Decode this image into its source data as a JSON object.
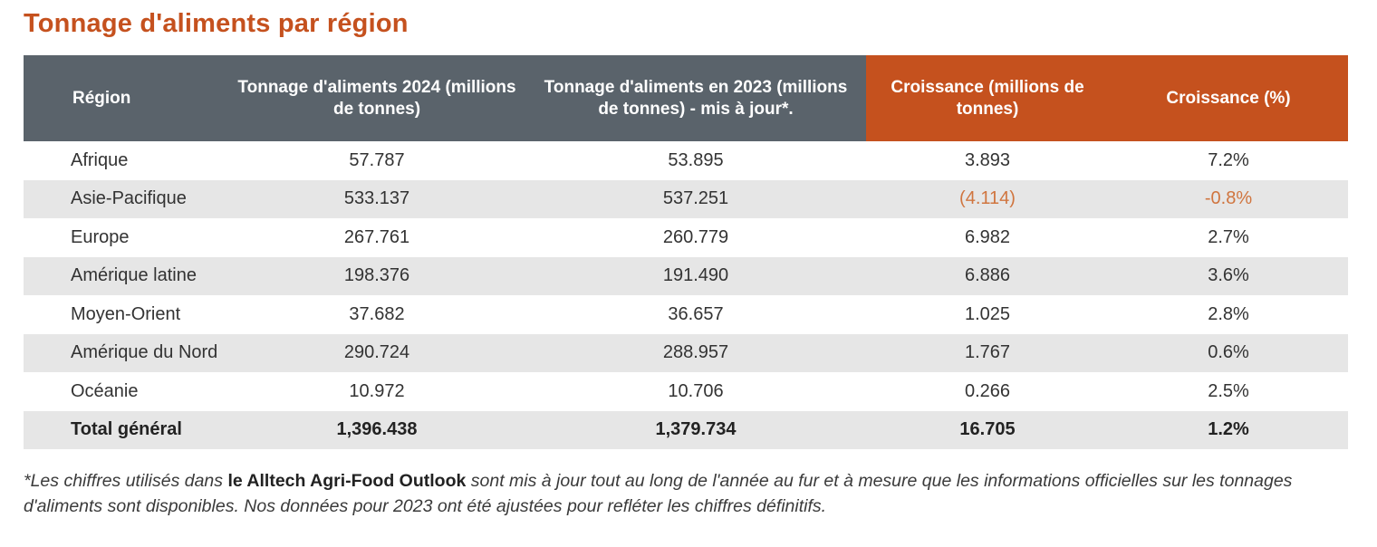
{
  "title": "Tonnage d'aliments par région",
  "table": {
    "headers": [
      "Région",
      "Tonnage d'aliments 2024 (millions de tonnes)",
      "Tonnage d'aliments en 2023 (millions de tonnes) - mis à jour*.",
      "Croissance (millions de tonnes)",
      "Croissance (%)"
    ],
    "rows": [
      [
        "Afrique",
        "57.787",
        "53.895",
        "3.893",
        "7.2%"
      ],
      [
        "Asie-Pacifique",
        "533.137",
        "537.251",
        "(4.114)",
        "-0.8%"
      ],
      [
        "Europe",
        "267.761",
        "260.779",
        "6.982",
        "2.7%"
      ],
      [
        "Amérique latine",
        "198.376",
        "191.490",
        "6.886",
        "3.6%"
      ],
      [
        "Moyen-Orient",
        "37.682",
        "36.657",
        "1.025",
        "2.8%"
      ],
      [
        "Amérique du Nord",
        "290.724",
        "288.957",
        "1.767",
        "0.6%"
      ],
      [
        "Océanie",
        "10.972",
        "10.706",
        "0.266",
        "2.5%"
      ]
    ],
    "total": [
      "Total général",
      "1,396.438",
      "1,379.734",
      "16.705",
      "1.2%"
    ]
  },
  "footnote": {
    "before": "*Les chiffres utilisés dans ",
    "brand": "le Alltech Agri-Food Outlook",
    "after": " sont mis à jour tout au long de l'année au fur et à mesure que les informations officielles sur les tonnages d'aliments sont disponibles. Nos données pour 2023 ont été ajustées pour refléter les chiffres définitifs."
  },
  "colors": {
    "accent_orange": "#c5511e",
    "header_grey": "#5a636b",
    "negative": "#d0753f",
    "row_shade": "#e6e6e6"
  }
}
